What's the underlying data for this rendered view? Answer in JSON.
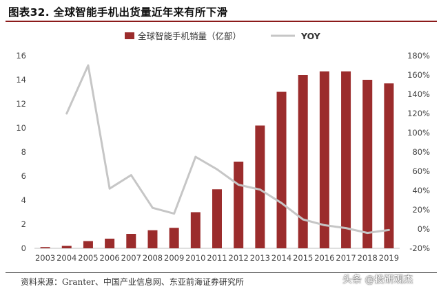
{
  "title": "图表32. 全球智能手机出货量近年来有所下滑",
  "source": "资料来源：Granter、中国产业信息网、东亚前海证券研究所",
  "watermark": "头条 @投研观杰",
  "colors": {
    "bar": "#9b2c2c",
    "line": "#c6c6c6",
    "accent": "#8b1a1a"
  },
  "chart_data": {
    "type": "bar",
    "title": "图表32. 全球智能手机出货量近年来有所下滑",
    "categories": [
      "2003",
      "2004",
      "2005",
      "2006",
      "2007",
      "2008",
      "2009",
      "2010",
      "2011",
      "2012",
      "2013",
      "2014",
      "2015",
      "2016",
      "2017",
      "2018",
      "2019"
    ],
    "series": [
      {
        "name": "全球智能手机销量（亿部）",
        "type": "bar",
        "axis": "left",
        "values": [
          0.1,
          0.2,
          0.6,
          0.8,
          1.2,
          1.5,
          1.7,
          3.0,
          4.9,
          7.2,
          10.2,
          13.0,
          14.4,
          14.7,
          14.7,
          14.0,
          13.7
        ]
      },
      {
        "name": "YOY",
        "type": "line",
        "axis": "right",
        "values": [
          null,
          120,
          170,
          42,
          56,
          22,
          16,
          75,
          62,
          46,
          41,
          27,
          10,
          4,
          1,
          -4,
          -1
        ]
      }
    ],
    "y_left": {
      "min": 0,
      "max": 16,
      "ticks": [
        "0",
        "2",
        "4",
        "6",
        "8",
        "10",
        "12",
        "14",
        "16"
      ]
    },
    "y_right": {
      "min": -20,
      "max": 180,
      "ticks": [
        "-20%",
        "0%",
        "20%",
        "40%",
        "60%",
        "80%",
        "100%",
        "120%",
        "140%",
        "160%",
        "180%"
      ]
    },
    "legend_position": "top-center",
    "grid": false
  }
}
